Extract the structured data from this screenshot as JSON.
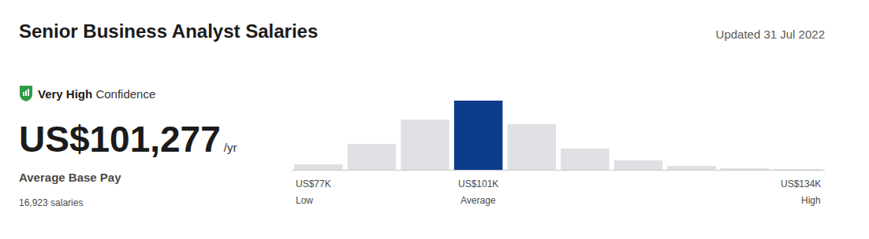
{
  "header": {
    "title": "Senior Business Analyst Salaries",
    "updated": "Updated 31 Jul 2022"
  },
  "summary": {
    "confidence_level": "Very High",
    "confidence_text": "Confidence",
    "average": "US$101,277",
    "unit": "/yr",
    "label": "Average Base Pay",
    "count": "16,923 salaries"
  },
  "chart_data": {
    "type": "bar",
    "categories": [
      "US$77K",
      null,
      null,
      "US$101K",
      null,
      null,
      null,
      null,
      null,
      "US$134K"
    ],
    "captions": [
      "Low",
      null,
      null,
      "Average",
      null,
      null,
      null,
      null,
      null,
      "High"
    ],
    "values": [
      7,
      33,
      64,
      88,
      58,
      27,
      12,
      5,
      2,
      1
    ],
    "colors": [
      "#dfe0e3",
      "#dfe0e3",
      "#dfe0e3",
      "#0c3c8c",
      "#dfe0e3",
      "#dfe0e3",
      "#dfe0e3",
      "#dfe0e3",
      "#dfe0e3",
      "#dfe0e3"
    ],
    "ylim": [
      0,
      88
    ],
    "grid": false,
    "tick_labels": false
  }
}
